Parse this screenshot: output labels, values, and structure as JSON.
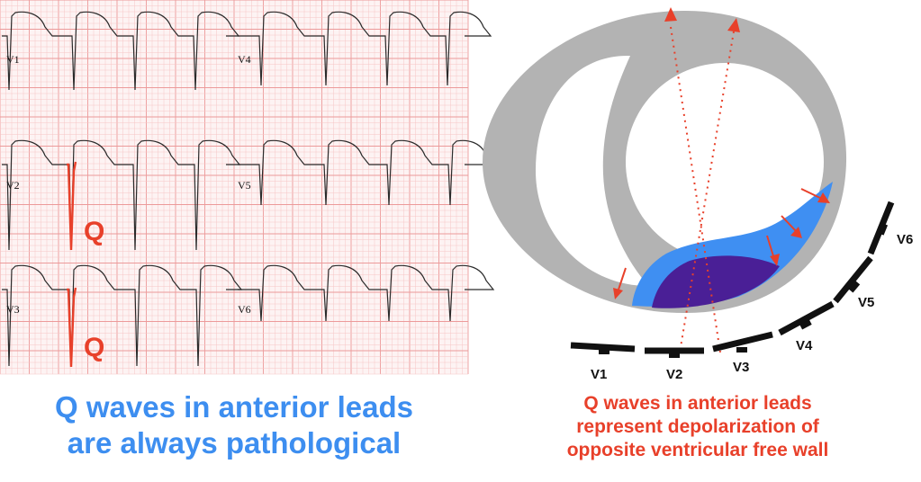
{
  "colors": {
    "grid_minor": "#f6c6c6",
    "grid_major": "#ec9a9a",
    "ecg_trace": "#2a2a2a",
    "highlight_red": "#e8402a",
    "caption_blue": "#3d8ef0",
    "wall_gray": "#b3b3b3",
    "infarct_blue": "#3f8ff2",
    "infarct_purple": "#4a1f96",
    "electrode": "#111111"
  },
  "ecg": {
    "leads": [
      {
        "id": "v1",
        "label": "V1"
      },
      {
        "id": "v2",
        "label": "V2"
      },
      {
        "id": "v3",
        "label": "V3"
      },
      {
        "id": "v4",
        "label": "V4"
      },
      {
        "id": "v5",
        "label": "V5"
      },
      {
        "id": "v6",
        "label": "V6"
      }
    ],
    "q_label": "Q"
  },
  "heart": {
    "electrodes": [
      {
        "id": "v1",
        "label": "V1"
      },
      {
        "id": "v2",
        "label": "V2"
      },
      {
        "id": "v3",
        "label": "V3"
      },
      {
        "id": "v4",
        "label": "V4"
      },
      {
        "id": "v5",
        "label": "V5"
      },
      {
        "id": "v6",
        "label": "V6"
      }
    ],
    "arrows": [
      "arrow"
    ]
  },
  "captions": {
    "left": [
      "Q waves in anterior leads",
      "are always pathological"
    ],
    "right": [
      "Q waves in anterior leads",
      "represent depolarization of",
      "opposite ventricular free wall"
    ]
  }
}
